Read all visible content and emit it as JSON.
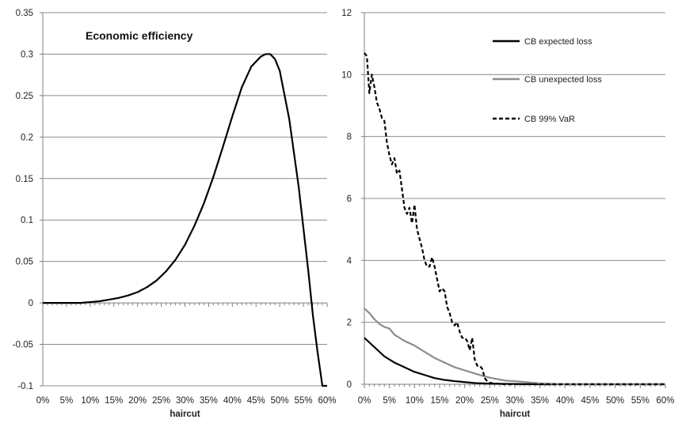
{
  "chart_data": [
    {
      "type": "line",
      "title": "Economic efficiency",
      "xlabel": "haircut",
      "ylabel": "",
      "xlim": [
        0,
        0.6
      ],
      "ylim": [
        -0.1,
        0.35
      ],
      "x_tick_labels": [
        "0%",
        "5%",
        "10%",
        "15%",
        "20%",
        "25%",
        "30%",
        "35%",
        "40%",
        "45%",
        "50%",
        "55%",
        "60%"
      ],
      "y_tick_labels": [
        "0.35",
        "0.3",
        "0.25",
        "0.2",
        "0.15",
        "0.1",
        "0.05",
        "0",
        "-0.05",
        "-0.1"
      ],
      "y_tick_values": [
        0.35,
        0.3,
        0.25,
        0.2,
        0.15,
        0.1,
        0.05,
        0,
        -0.05,
        -0.1
      ],
      "grid": "horizontal",
      "series": [
        {
          "color": "#000000",
          "x": [
            0,
            0.05,
            0.08,
            0.1,
            0.12,
            0.14,
            0.16,
            0.18,
            0.2,
            0.22,
            0.24,
            0.26,
            0.28,
            0.3,
            0.32,
            0.34,
            0.36,
            0.38,
            0.4,
            0.42,
            0.44,
            0.46,
            0.47,
            0.48,
            0.49,
            0.5,
            0.52,
            0.54,
            0.56,
            0.57,
            0.58,
            0.59,
            0.6
          ],
          "values": [
            0,
            0,
            0,
            0.001,
            0.002,
            0.004,
            0.006,
            0.009,
            0.013,
            0.019,
            0.027,
            0.038,
            0.052,
            0.07,
            0.093,
            0.12,
            0.152,
            0.188,
            0.225,
            0.26,
            0.285,
            0.297,
            0.3,
            0.3,
            0.294,
            0.28,
            0.222,
            0.14,
            0.04,
            -0.015,
            -0.06,
            -0.1,
            -0.1
          ]
        }
      ]
    },
    {
      "type": "line",
      "title": "",
      "xlabel": "haircut",
      "ylabel": "",
      "xlim": [
        0,
        0.6
      ],
      "ylim": [
        0,
        12
      ],
      "x_tick_labels": [
        "0%",
        "5%",
        "10%",
        "15%",
        "20%",
        "25%",
        "30%",
        "35%",
        "40%",
        "45%",
        "50%",
        "55%",
        "60%"
      ],
      "y_tick_labels": [
        "12",
        "10",
        "8",
        "6",
        "4",
        "2",
        "0"
      ],
      "y_tick_values": [
        12,
        10,
        8,
        6,
        4,
        2,
        0
      ],
      "grid": "horizontal",
      "legend_position": "top-right",
      "series": [
        {
          "name": "CB expected loss",
          "color": "#000000",
          "style": "solid",
          "x": [
            0,
            0.01,
            0.02,
            0.03,
            0.04,
            0.05,
            0.06,
            0.08,
            0.1,
            0.12,
            0.14,
            0.16,
            0.18,
            0.2,
            0.22,
            0.25,
            0.3,
            0.35,
            0.4,
            0.6
          ],
          "values": [
            1.5,
            1.35,
            1.2,
            1.05,
            0.9,
            0.8,
            0.7,
            0.55,
            0.4,
            0.3,
            0.2,
            0.14,
            0.1,
            0.07,
            0.04,
            0.02,
            0.01,
            0.0,
            0.0,
            0.0
          ]
        },
        {
          "name": "CB unexpected loss",
          "color": "#8c8c8c",
          "style": "solid",
          "x": [
            0,
            0.01,
            0.02,
            0.03,
            0.04,
            0.05,
            0.06,
            0.07,
            0.08,
            0.1,
            0.12,
            0.14,
            0.16,
            0.18,
            0.2,
            0.22,
            0.24,
            0.26,
            0.28,
            0.3,
            0.35,
            0.4,
            0.6
          ],
          "values": [
            2.45,
            2.3,
            2.1,
            1.95,
            1.85,
            1.8,
            1.6,
            1.5,
            1.4,
            1.25,
            1.05,
            0.85,
            0.7,
            0.55,
            0.45,
            0.35,
            0.25,
            0.18,
            0.12,
            0.1,
            0.03,
            0.0,
            0.0
          ]
        },
        {
          "name": "CB 99% VaR",
          "color": "#000000",
          "style": "dashed",
          "x": [
            0,
            0.005,
            0.01,
            0.015,
            0.02,
            0.025,
            0.03,
            0.035,
            0.04,
            0.045,
            0.05,
            0.055,
            0.06,
            0.065,
            0.07,
            0.075,
            0.08,
            0.085,
            0.09,
            0.095,
            0.1,
            0.105,
            0.11,
            0.115,
            0.12,
            0.125,
            0.13,
            0.135,
            0.14,
            0.145,
            0.15,
            0.155,
            0.16,
            0.165,
            0.17,
            0.175,
            0.18,
            0.185,
            0.19,
            0.195,
            0.2,
            0.205,
            0.21,
            0.215,
            0.22,
            0.225,
            0.23,
            0.235,
            0.24,
            0.245,
            0.25,
            0.26,
            0.28,
            0.3,
            0.6
          ],
          "values": [
            10.7,
            10.6,
            9.4,
            10.0,
            9.6,
            9.1,
            8.9,
            8.6,
            8.5,
            7.8,
            7.4,
            7.1,
            7.3,
            6.8,
            6.9,
            6.3,
            5.7,
            5.5,
            5.7,
            5.2,
            5.8,
            5.0,
            4.7,
            4.4,
            4.0,
            3.8,
            3.8,
            4.1,
            3.8,
            3.4,
            3.0,
            3.1,
            3.0,
            2.5,
            2.3,
            2.0,
            1.9,
            2.0,
            1.7,
            1.5,
            1.5,
            1.4,
            1.1,
            1.5,
            0.8,
            0.6,
            0.6,
            0.5,
            0.2,
            0.1,
            0.05,
            0.02,
            0.0,
            0.0,
            0.0
          ]
        }
      ]
    }
  ]
}
